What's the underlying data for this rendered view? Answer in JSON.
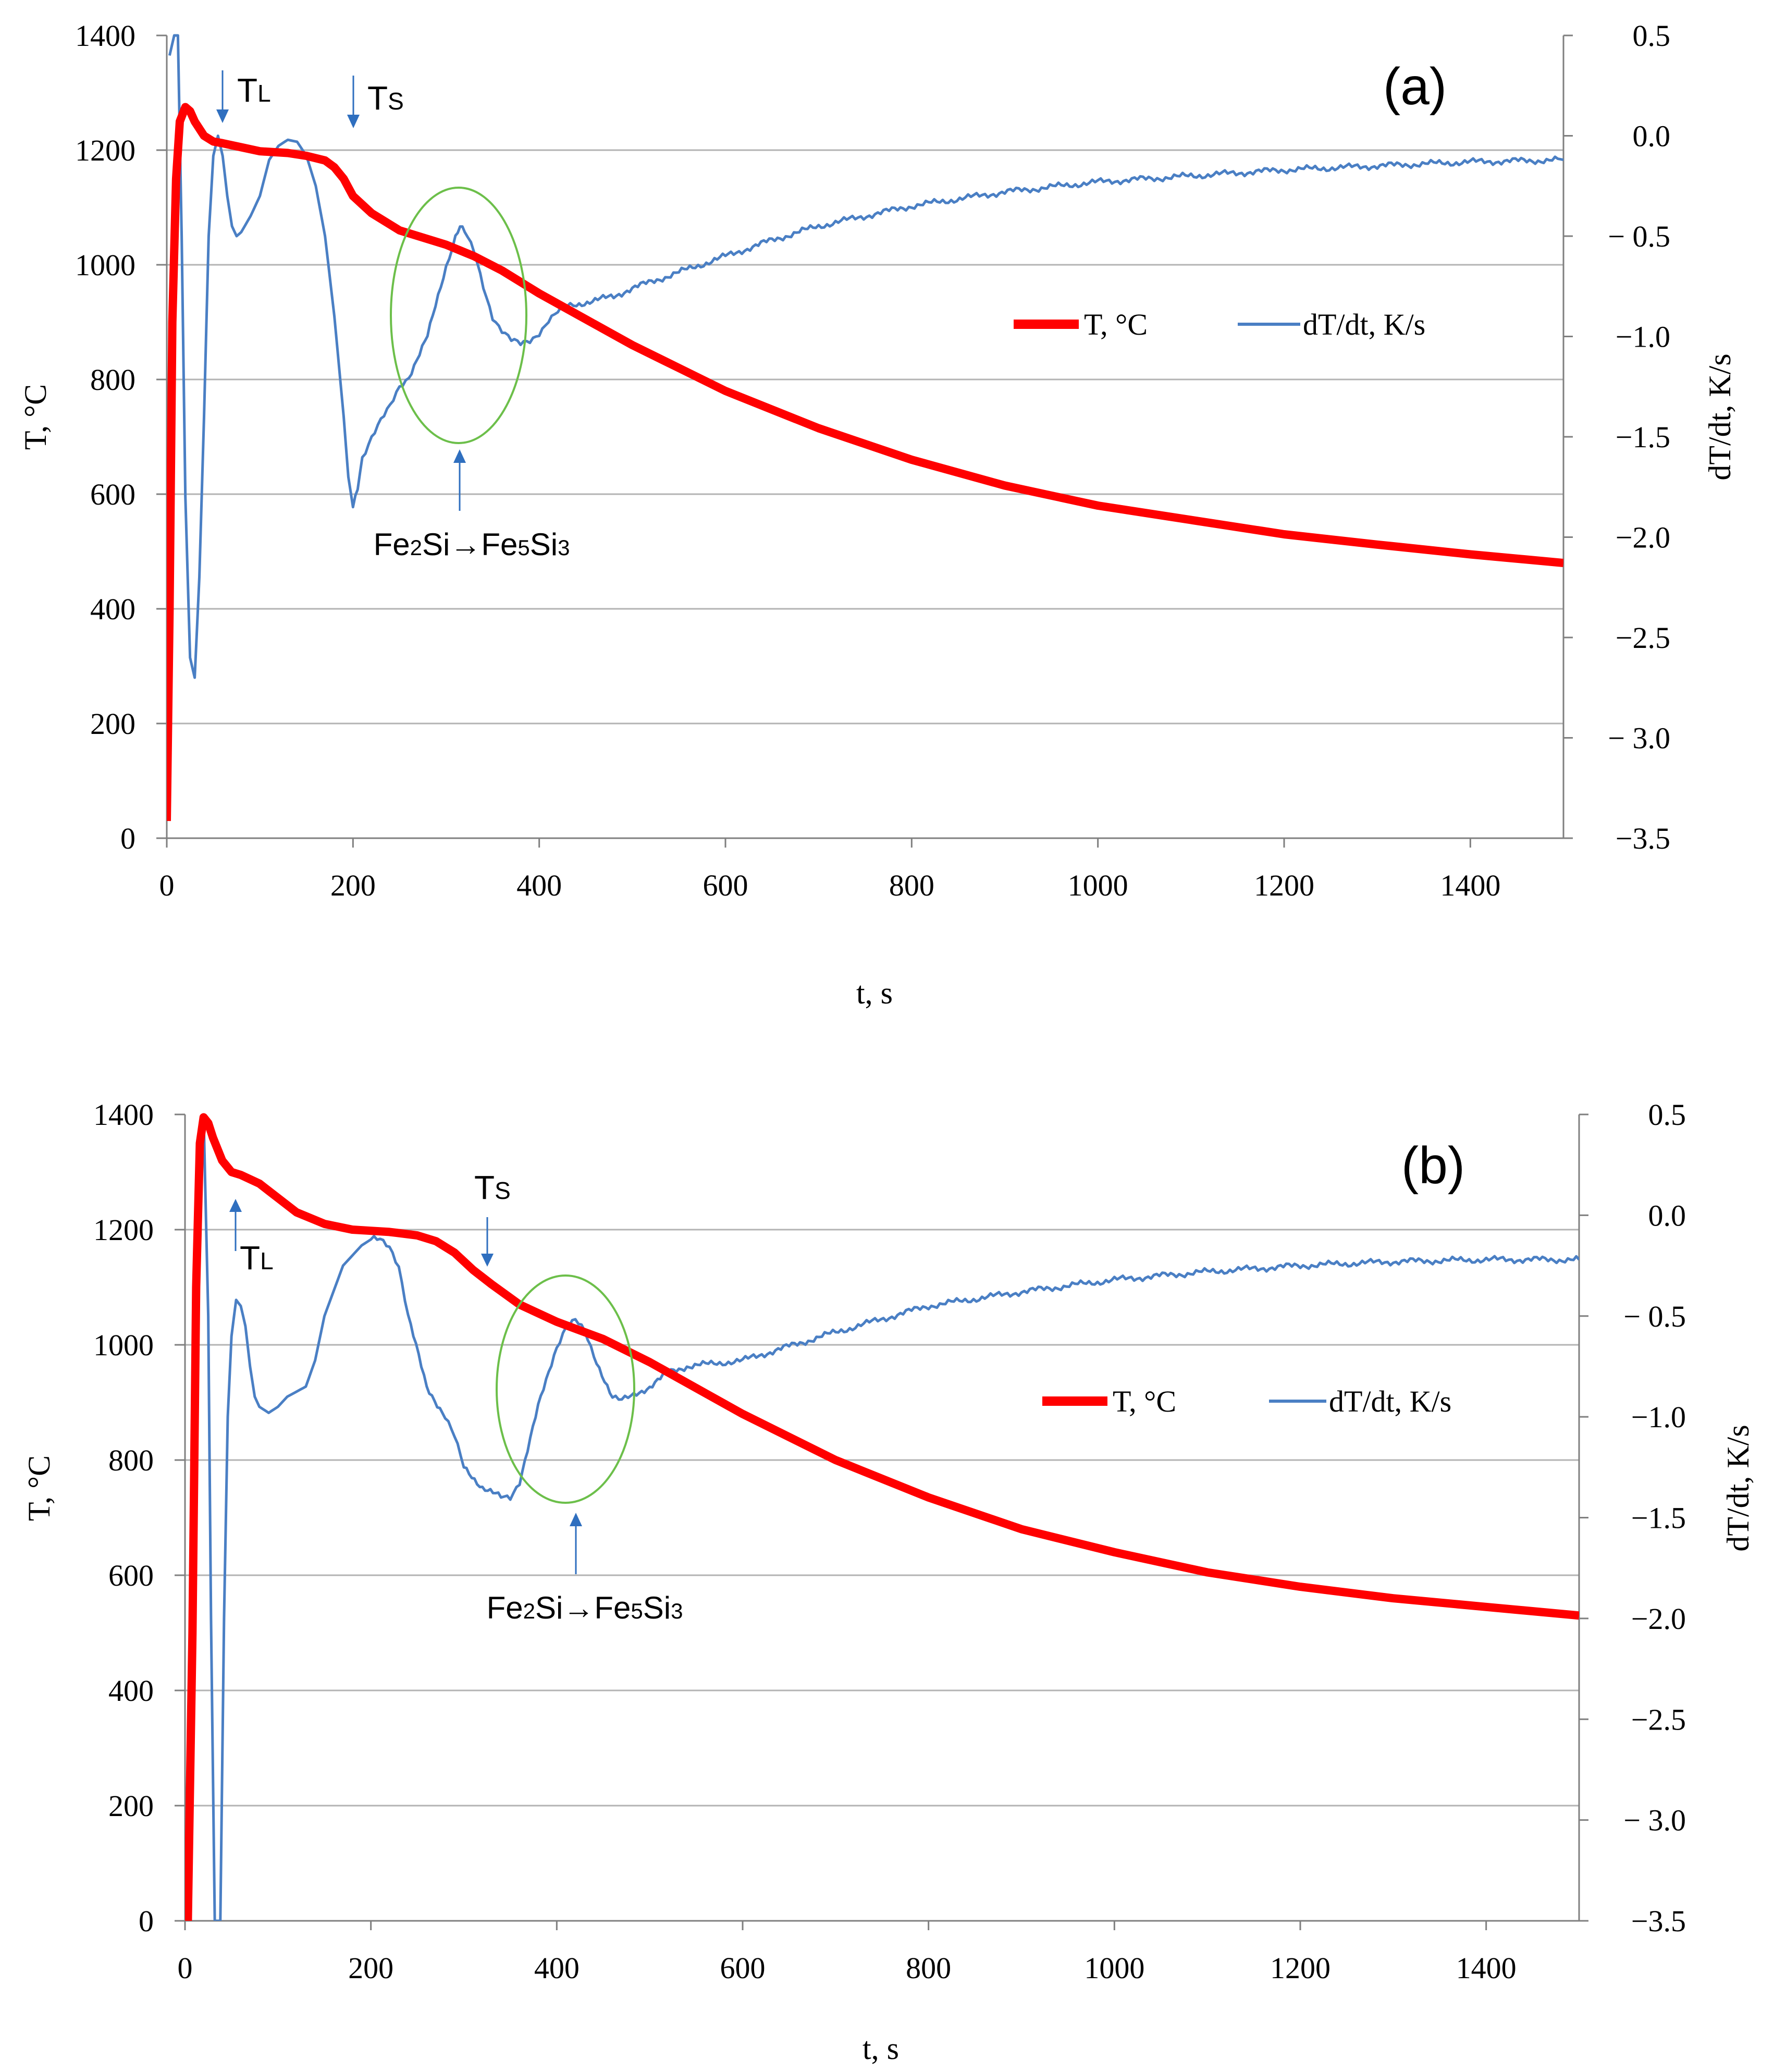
{
  "colors": {
    "temperature": "#ff0000",
    "derivative": "#4a7fc4",
    "annotation_arrow": "#2f6fbf",
    "ellipse": "#6cbf4a",
    "grid": "#b3b3b3",
    "axis": "#7f7f7f"
  },
  "chart_data": [
    {
      "panel_label": "(a)",
      "type": "line",
      "xlabel": "t, s",
      "ylabel_left": "T, °C",
      "ylabel_right": "dT/dt, K/s",
      "xlim": [
        0,
        1500
      ],
      "ylim_left": [
        0,
        1400
      ],
      "ylim_right": [
        -3.5,
        0.5
      ],
      "x_ticks": [
        "0",
        "200",
        "400",
        "600",
        "800",
        "1000",
        "1200",
        "1400"
      ],
      "y_left_ticks": [
        "0",
        "200",
        "400",
        "600",
        "800",
        "1000",
        "1200",
        "1400"
      ],
      "y_right_ticks": [
        "−3.5",
        "− 3.0",
        "−2.5",
        "−2.0",
        "−1.5",
        "−1.0",
        "− 0.5",
        "0.0",
        "0.5"
      ],
      "legend": {
        "position": "center-right",
        "entries": [
          "T, °C",
          "dT/dt, K/s"
        ]
      },
      "series": [
        {
          "name": "T, °C",
          "axis": "left",
          "x": [
            0,
            3,
            6,
            10,
            14,
            20,
            25,
            30,
            40,
            50,
            60,
            80,
            100,
            130,
            150,
            170,
            180,
            190,
            200,
            220,
            250,
            280,
            300,
            330,
            360,
            400,
            450,
            500,
            550,
            600,
            700,
            800,
            900,
            1000,
            1100,
            1200,
            1300,
            1400,
            1500
          ],
          "y": [
            30,
            400,
            900,
            1150,
            1250,
            1275,
            1268,
            1250,
            1225,
            1215,
            1212,
            1205,
            1198,
            1195,
            1190,
            1182,
            1170,
            1150,
            1120,
            1090,
            1060,
            1045,
            1035,
            1015,
            990,
            950,
            905,
            860,
            820,
            780,
            715,
            660,
            615,
            580,
            555,
            530,
            512,
            495,
            480
          ]
        },
        {
          "name": "dT/dt, K/s",
          "axis": "right",
          "x": [
            3,
            8,
            12,
            16,
            20,
            25,
            30,
            35,
            40,
            45,
            50,
            55,
            60,
            65,
            70,
            75,
            80,
            90,
            100,
            110,
            120,
            130,
            140,
            150,
            160,
            170,
            180,
            190,
            195,
            200,
            205,
            210,
            220,
            230,
            240,
            250,
            260,
            280,
            300,
            310,
            315,
            320,
            330,
            340,
            350,
            360,
            370,
            380,
            390,
            400,
            410,
            420,
            430,
            440,
            460,
            480,
            500,
            550,
            600,
            650,
            700,
            800,
            900,
            1000,
            1100,
            1200,
            1300,
            1400,
            1500
          ],
          "y": [
            0.4,
            0.5,
            0.5,
            -0.5,
            -1.8,
            -2.6,
            -2.7,
            -2.2,
            -1.4,
            -0.5,
            -0.1,
            0.0,
            -0.1,
            -0.3,
            -0.45,
            -0.5,
            -0.48,
            -0.4,
            -0.3,
            -0.12,
            -0.05,
            -0.02,
            -0.03,
            -0.1,
            -0.25,
            -0.5,
            -0.9,
            -1.4,
            -1.7,
            -1.85,
            -1.75,
            -1.6,
            -1.5,
            -1.42,
            -1.35,
            -1.25,
            -1.2,
            -1.0,
            -0.65,
            -0.5,
            -0.45,
            -0.48,
            -0.58,
            -0.75,
            -0.9,
            -0.97,
            -1.02,
            -1.04,
            -1.02,
            -0.98,
            -0.92,
            -0.88,
            -0.85,
            -0.84,
            -0.82,
            -0.8,
            -0.76,
            -0.68,
            -0.6,
            -0.52,
            -0.45,
            -0.35,
            -0.28,
            -0.23,
            -0.2,
            -0.17,
            -0.15,
            -0.13,
            -0.12
          ]
        }
      ],
      "annotations": [
        {
          "id": "tl",
          "text": "T",
          "sub": "L",
          "x": 60,
          "y": 1320
        },
        {
          "id": "ts",
          "text": "T",
          "sub": "S",
          "x": 200,
          "y": 1295
        },
        {
          "id": "phase",
          "text": "Fe2Si→Fe5Si3",
          "x": 315,
          "y": 520
        }
      ]
    },
    {
      "panel_label": "(b)",
      "type": "line",
      "xlabel": "t, s",
      "ylabel_left": "T, °C",
      "ylabel_right": "dT/dt, K/s",
      "xlim": [
        0,
        1500
      ],
      "ylim_left": [
        0,
        1400
      ],
      "ylim_right": [
        -3.5,
        0.5
      ],
      "x_ticks": [
        "0",
        "200",
        "400",
        "600",
        "800",
        "1000",
        "1200",
        "1400"
      ],
      "y_left_ticks": [
        "0",
        "200",
        "400",
        "600",
        "800",
        "1000",
        "1200",
        "1400"
      ],
      "y_right_ticks": [
        "−3.5",
        "− 3.0",
        "−2.5",
        "−2.0",
        "−1.5",
        "−1.0",
        "− 0.5",
        "0.0",
        "0.5"
      ],
      "legend": {
        "position": "center-right",
        "entries": [
          "T, °C",
          "dT/dt, K/s"
        ]
      },
      "series": [
        {
          "name": "T, °C",
          "axis": "left",
          "x": [
            3,
            8,
            12,
            16,
            20,
            25,
            30,
            40,
            50,
            60,
            80,
            100,
            120,
            150,
            180,
            200,
            220,
            250,
            270,
            290,
            310,
            330,
            360,
            400,
            450,
            500,
            550,
            600,
            700,
            800,
            900,
            1000,
            1100,
            1200,
            1300,
            1400,
            1500
          ],
          "y": [
            0,
            500,
            1100,
            1350,
            1395,
            1385,
            1360,
            1320,
            1300,
            1295,
            1280,
            1255,
            1230,
            1210,
            1200,
            1198,
            1196,
            1190,
            1180,
            1160,
            1130,
            1105,
            1070,
            1040,
            1010,
            970,
            925,
            880,
            800,
            735,
            680,
            640,
            605,
            580,
            560,
            545,
            530
          ]
        },
        {
          "name": "dT/dt, K/s",
          "axis": "right",
          "x": [
            8,
            12,
            16,
            20,
            25,
            28,
            32,
            35,
            38,
            42,
            46,
            50,
            55,
            60,
            65,
            70,
            75,
            80,
            90,
            100,
            110,
            130,
            140,
            150,
            170,
            190,
            200,
            210,
            220,
            230,
            240,
            260,
            280,
            290,
            300,
            320,
            340,
            350,
            360,
            380,
            400,
            410,
            420,
            430,
            440,
            460,
            470,
            480,
            500,
            520,
            540,
            560,
            600,
            650,
            700,
            800,
            900,
            1000,
            1100,
            1200,
            1300,
            1400,
            1500
          ],
          "y": [
            -1.5,
            -0.2,
            0.4,
            0.5,
            -0.5,
            -2.0,
            -3.5,
            -3.5,
            -3.5,
            -2.0,
            -1.0,
            -0.6,
            -0.42,
            -0.45,
            -0.55,
            -0.75,
            -0.9,
            -0.95,
            -0.98,
            -0.95,
            -0.9,
            -0.85,
            -0.72,
            -0.5,
            -0.25,
            -0.15,
            -0.12,
            -0.12,
            -0.15,
            -0.25,
            -0.5,
            -0.85,
            -1.0,
            -1.1,
            -1.25,
            -1.35,
            -1.4,
            -1.4,
            -1.32,
            -0.95,
            -0.65,
            -0.55,
            -0.52,
            -0.58,
            -0.7,
            -0.9,
            -0.92,
            -0.9,
            -0.85,
            -0.78,
            -0.75,
            -0.74,
            -0.72,
            -0.65,
            -0.58,
            -0.45,
            -0.38,
            -0.32,
            -0.28,
            -0.25,
            -0.23,
            -0.22,
            -0.22
          ]
        }
      ],
      "annotations": [
        {
          "id": "tl",
          "text": "T",
          "sub": "L",
          "x": 55,
          "y": 1200
        },
        {
          "id": "ts",
          "text": "T",
          "sub": "S",
          "x": 325,
          "y": 1290
        },
        {
          "id": "phase",
          "text": "Fe2Si→Fe5Si3",
          "x": 420,
          "y": 650
        }
      ]
    }
  ]
}
